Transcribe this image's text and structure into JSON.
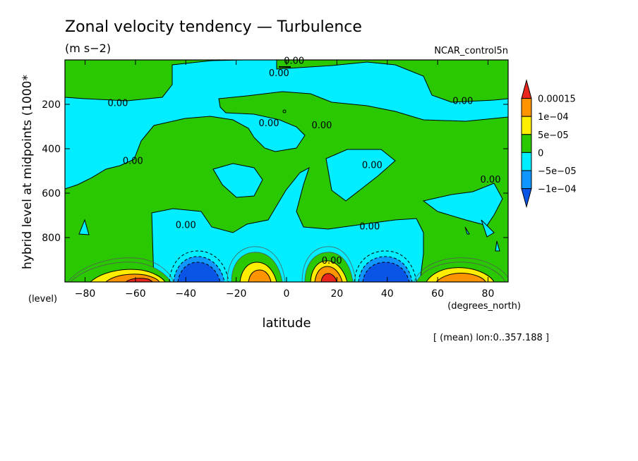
{
  "chart_data": {
    "type": "heatmap",
    "title": "Zonal velocity tendency — Turbulence",
    "units": "(m s−2)",
    "dataset": "NCAR_control5n",
    "xlabel": "latitude",
    "xunits": "(degrees_north)",
    "ylabel": "hybrid level at midpoints (1000*",
    "yunits": "(level)",
    "footer": "[ (mean) lon:0..357.188 ]",
    "xlim": [
      -88,
      88
    ],
    "ylim": [
      1000,
      0
    ],
    "y_inverted": true,
    "x_ticks": [
      -80,
      -60,
      -40,
      -20,
      0,
      20,
      40,
      60,
      80
    ],
    "x_tick_labels": [
      "−80",
      "−60",
      "−40",
      "−20",
      "0",
      "20",
      "40",
      "60",
      "80"
    ],
    "y_ticks": [
      200,
      400,
      600,
      800
    ],
    "y_tick_labels": [
      "200",
      "400",
      "600",
      "800"
    ],
    "colorbar": {
      "labels": [
        "0.00015",
        "1e−04",
        "5e−05",
        "0",
        "−5e−05",
        "−1e−04"
      ],
      "bins": [
        {
          "range": "> 0.00015",
          "color": "#e8261c"
        },
        {
          "range": "1e-04 .. 0.00015",
          "color": "#ff9400"
        },
        {
          "range": "5e-05 .. 1e-04",
          "color": "#ffee00"
        },
        {
          "range": "0 .. 5e-05",
          "color": "#29c800"
        },
        {
          "range": "-5e-05 .. 0",
          "color": "#00eeff"
        },
        {
          "range": "-1e-04 .. -5e-05",
          "color": "#0f96ff"
        },
        {
          "range": "< -1e-04",
          "color": "#0a55e6"
        }
      ]
    },
    "contour_labels": [
      {
        "text": "0.00",
        "lat": 3,
        "lev": 5
      },
      {
        "text": "0.00",
        "lat": -3,
        "lev": 60
      },
      {
        "text": "0.00",
        "lat": -67,
        "lev": 195
      },
      {
        "text": "0.00",
        "lat": 70,
        "lev": 185
      },
      {
        "text": "0.00",
        "lat": -7,
        "lev": 285
      },
      {
        "text": "0.00",
        "lat": 14,
        "lev": 295
      },
      {
        "text": "0.00",
        "lat": -61,
        "lev": 455
      },
      {
        "text": "0.00",
        "lat": 34,
        "lev": 475
      },
      {
        "text": "0.00",
        "lat": 81,
        "lev": 540
      },
      {
        "text": "0.00",
        "lat": -40,
        "lev": 745
      },
      {
        "text": "0.00",
        "lat": 33,
        "lev": 750
      },
      {
        "text": "0.00",
        "lat": 18,
        "lev": 905
      }
    ],
    "regions": [
      {
        "sign": "positive",
        "lat_range": [
          -70,
          -45
        ],
        "lev_range": [
          930,
          1000
        ],
        "peak": 0.00015
      },
      {
        "sign": "negative",
        "lat_range": [
          -40,
          -25
        ],
        "lev_range": [
          900,
          1000
        ],
        "peak": -0.0001
      },
      {
        "sign": "positive",
        "lat_range": [
          -15,
          -2
        ],
        "lev_range": [
          900,
          1000
        ],
        "peak": 0.00015
      },
      {
        "sign": "positive",
        "lat_range": [
          10,
          22
        ],
        "lev_range": [
          900,
          1000
        ],
        "peak": 0.00015
      },
      {
        "sign": "negative",
        "lat_range": [
          32,
          48
        ],
        "lev_range": [
          900,
          1000
        ],
        "peak": -0.0001
      },
      {
        "sign": "positive",
        "lat_range": [
          55,
          80
        ],
        "lev_range": [
          920,
          1000
        ],
        "peak": 0.0001
      }
    ]
  }
}
